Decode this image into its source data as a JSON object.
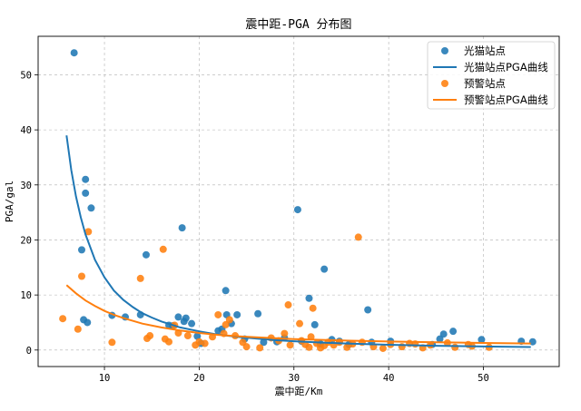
{
  "colors": {
    "guangmao": "#1f77b4",
    "yujing": "#ff7f0e",
    "grid": "#b0b0b0",
    "axis": "#000000"
  },
  "chart_data": {
    "type": "scatter",
    "title": "震中距-PGA 分布图",
    "xlabel": "震中距/Km",
    "ylabel": "PGA/gal",
    "xlim": [
      3,
      58
    ],
    "ylim": [
      -3,
      57
    ],
    "xticks": [
      10,
      20,
      30,
      40,
      50
    ],
    "yticks": [
      0,
      10,
      20,
      30,
      40,
      50
    ],
    "grid": true,
    "legend_position": "top-right",
    "series": [
      {
        "name": "光猫站点",
        "kind": "scatter",
        "color": "#1f77b4",
        "points": [
          [
            6.8,
            54.0
          ],
          [
            8.0,
            31.0
          ],
          [
            8.0,
            28.5
          ],
          [
            8.6,
            25.8
          ],
          [
            7.6,
            18.2
          ],
          [
            7.8,
            5.5
          ],
          [
            8.2,
            5.0
          ],
          [
            10.8,
            6.3
          ],
          [
            12.2,
            6.0
          ],
          [
            13.8,
            6.4
          ],
          [
            14.4,
            17.3
          ],
          [
            16.8,
            4.5
          ],
          [
            17.2,
            4.4
          ],
          [
            17.8,
            6.0
          ],
          [
            18.2,
            22.2
          ],
          [
            18.4,
            5.2
          ],
          [
            18.6,
            5.8
          ],
          [
            19.2,
            4.8
          ],
          [
            19.8,
            2.5
          ],
          [
            20.2,
            1.2
          ],
          [
            22.0,
            3.5
          ],
          [
            22.4,
            3.8
          ],
          [
            22.8,
            10.8
          ],
          [
            22.9,
            6.4
          ],
          [
            23.4,
            4.8
          ],
          [
            24.0,
            6.4
          ],
          [
            24.8,
            2.0
          ],
          [
            26.2,
            6.6
          ],
          [
            26.8,
            1.4
          ],
          [
            28.2,
            1.5
          ],
          [
            29.0,
            2.2
          ],
          [
            30.4,
            25.5
          ],
          [
            30.8,
            1.6
          ],
          [
            31.6,
            9.4
          ],
          [
            32.2,
            4.6
          ],
          [
            32.8,
            1.1
          ],
          [
            33.2,
            14.7
          ],
          [
            34.0,
            1.9
          ],
          [
            34.8,
            1.6
          ],
          [
            35.8,
            1.0
          ],
          [
            37.8,
            7.3
          ],
          [
            38.2,
            1.4
          ],
          [
            40.2,
            1.6
          ],
          [
            44.6,
            1.0
          ],
          [
            45.4,
            2.0
          ],
          [
            45.8,
            2.9
          ],
          [
            46.8,
            3.4
          ],
          [
            49.8,
            1.9
          ],
          [
            54.0,
            1.6
          ],
          [
            55.2,
            1.5
          ]
        ]
      },
      {
        "name": "光猫站点PGA曲线",
        "kind": "line",
        "color": "#1f77b4",
        "x": [
          6.0,
          6.5,
          7,
          7.5,
          8,
          9,
          10,
          11,
          12,
          13,
          14,
          15,
          16,
          18,
          20,
          22,
          24,
          26,
          28,
          30,
          33,
          36,
          40,
          45,
          50,
          55
        ],
        "y": [
          39.0,
          32.7,
          27.9,
          24.1,
          21.0,
          16.4,
          13.2,
          10.8,
          9.1,
          7.8,
          6.7,
          5.9,
          5.2,
          4.1,
          3.4,
          2.8,
          2.4,
          2.1,
          1.8,
          1.6,
          1.35,
          1.16,
          0.96,
          0.78,
          0.64,
          0.54
        ]
      },
      {
        "name": "预警站点",
        "kind": "scatter",
        "color": "#ff7f0e",
        "points": [
          [
            5.6,
            5.7
          ],
          [
            7.2,
            3.8
          ],
          [
            7.6,
            13.4
          ],
          [
            8.3,
            21.5
          ],
          [
            10.8,
            1.4
          ],
          [
            13.8,
            13.0
          ],
          [
            14.5,
            2.1
          ],
          [
            14.8,
            2.6
          ],
          [
            16.2,
            18.3
          ],
          [
            16.4,
            2.0
          ],
          [
            16.8,
            1.5
          ],
          [
            17.4,
            4.5
          ],
          [
            17.8,
            3.1
          ],
          [
            18.8,
            2.6
          ],
          [
            19.6,
            0.9
          ],
          [
            20.0,
            1.5
          ],
          [
            20.6,
            1.2
          ],
          [
            21.4,
            2.4
          ],
          [
            22.0,
            6.4
          ],
          [
            22.6,
            3.0
          ],
          [
            22.8,
            4.6
          ],
          [
            23.2,
            5.5
          ],
          [
            23.8,
            2.6
          ],
          [
            24.6,
            1.4
          ],
          [
            25.0,
            0.6
          ],
          [
            26.4,
            0.4
          ],
          [
            27.6,
            2.2
          ],
          [
            28.4,
            1.7
          ],
          [
            29.0,
            3.0
          ],
          [
            29.6,
            0.9
          ],
          [
            29.4,
            8.2
          ],
          [
            30.6,
            4.8
          ],
          [
            30.8,
            1.7
          ],
          [
            31.2,
            1.0
          ],
          [
            31.6,
            0.5
          ],
          [
            31.8,
            2.4
          ],
          [
            32.0,
            7.6
          ],
          [
            32.4,
            1.2
          ],
          [
            32.8,
            0.4
          ],
          [
            33.2,
            0.8
          ],
          [
            33.6,
            1.4
          ],
          [
            34.2,
            0.9
          ],
          [
            34.8,
            1.4
          ],
          [
            35.6,
            0.5
          ],
          [
            36.2,
            1.1
          ],
          [
            36.8,
            20.5
          ],
          [
            37.2,
            1.4
          ],
          [
            38.4,
            0.6
          ],
          [
            39.4,
            0.3
          ],
          [
            40.2,
            1.0
          ],
          [
            41.4,
            0.6
          ],
          [
            42.2,
            1.2
          ],
          [
            42.8,
            1.1
          ],
          [
            43.6,
            0.4
          ],
          [
            44.4,
            0.9
          ],
          [
            46.2,
            1.3
          ],
          [
            47.0,
            0.5
          ],
          [
            48.4,
            1.0
          ],
          [
            48.8,
            0.7
          ],
          [
            50.6,
            0.5
          ]
        ]
      },
      {
        "name": "预警站点PGA曲线",
        "kind": "line",
        "color": "#ff7f0e",
        "x": [
          6.0,
          7,
          8,
          9,
          10,
          11,
          12,
          14,
          16,
          18,
          20,
          22,
          24,
          26,
          28,
          30,
          33,
          36,
          40,
          45,
          50,
          55
        ],
        "y": [
          11.8,
          10.3,
          9.0,
          8.0,
          7.1,
          6.4,
          5.8,
          4.8,
          4.1,
          3.55,
          3.1,
          2.75,
          2.5,
          2.3,
          2.15,
          2.0,
          1.85,
          1.7,
          1.55,
          1.4,
          1.28,
          1.18
        ]
      }
    ]
  }
}
